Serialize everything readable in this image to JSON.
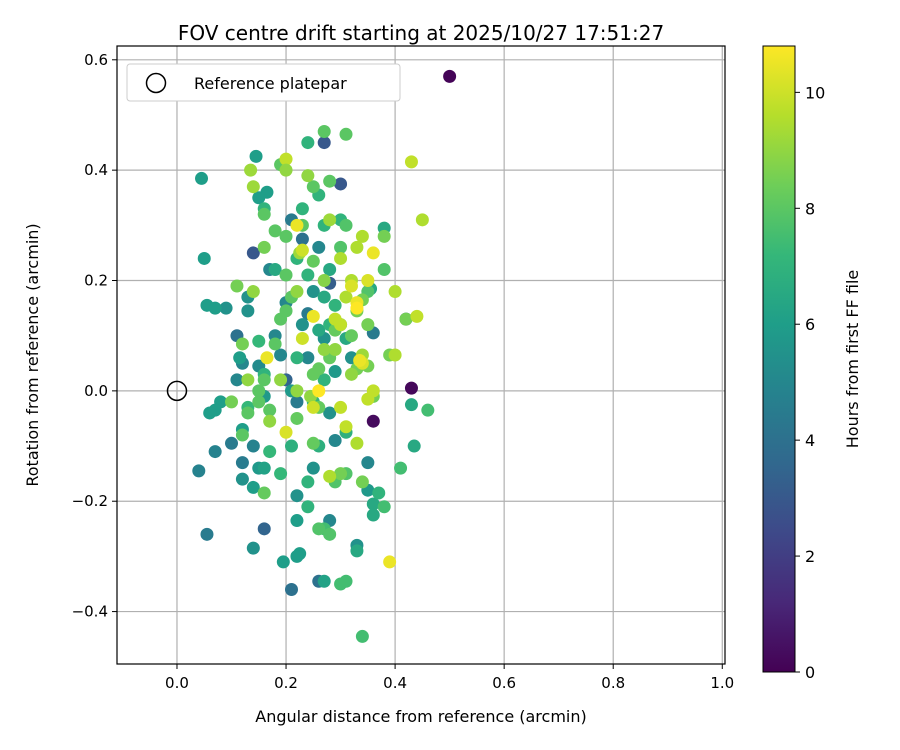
{
  "chart_data": {
    "type": "scatter",
    "title": "FOV centre drift starting at 2025/10/27 17:51:27",
    "xlabel": "Angular distance from reference (arcmin)",
    "ylabel": "Rotation from reference (arcmin)",
    "xlim": [
      -0.11,
      1.005
    ],
    "ylim": [
      -0.495,
      0.625
    ],
    "xticks": [
      0.0,
      0.2,
      0.4,
      0.6,
      0.8,
      1.0
    ],
    "xtick_labels": [
      "0.0",
      "0.2",
      "0.4",
      "0.6",
      "0.8",
      "1.0"
    ],
    "yticks": [
      -0.4,
      -0.2,
      0.0,
      0.2,
      0.4,
      0.6
    ],
    "ytick_labels": [
      "−0.4",
      "−0.2",
      "0.0",
      "0.2",
      "0.4",
      "0.6"
    ],
    "grid": true,
    "legend": {
      "position": "top-left",
      "entries": [
        "Reference platepar"
      ]
    },
    "reference_point": {
      "x": 0.0,
      "y": 0.0,
      "label": "Reference platepar",
      "marker": "open-circle"
    },
    "colorbar": {
      "label": "Hours from first FF file",
      "min": 0,
      "max": 10.8,
      "ticks": [
        0,
        2,
        4,
        6,
        8,
        10
      ],
      "tick_labels": [
        "0",
        "2",
        "4",
        "6",
        "8",
        "10"
      ],
      "colormap": "viridis",
      "stops": [
        "#440154",
        "#482878",
        "#3e4989",
        "#31688e",
        "#26828e",
        "#1f9e89",
        "#35b779",
        "#6ece58",
        "#b5de2b",
        "#fde725"
      ]
    },
    "points": [
      [
        0.5,
        0.57,
        0.1
      ],
      [
        0.43,
        0.005,
        0.2
      ],
      [
        0.36,
        -0.055,
        0.3
      ],
      [
        0.27,
        0.45,
        3.0
      ],
      [
        0.3,
        0.375,
        3.0
      ],
      [
        0.14,
        0.25,
        3.0
      ],
      [
        0.28,
        0.195,
        3.2
      ],
      [
        0.42,
        0.13,
        3.2
      ],
      [
        0.16,
        -0.25,
        3.5
      ],
      [
        0.26,
        -0.345,
        4.0
      ],
      [
        0.21,
        -0.36,
        4.0
      ],
      [
        0.055,
        -0.26,
        4.5
      ],
      [
        0.2,
        0.02,
        3.5
      ],
      [
        0.11,
        0.1,
        4.0
      ],
      [
        0.21,
        0.31,
        4.5
      ],
      [
        0.23,
        0.275,
        4.0
      ],
      [
        0.24,
        0.14,
        4.5
      ],
      [
        0.36,
        0.105,
        4.5
      ],
      [
        0.12,
        -0.13,
        4.5
      ],
      [
        0.1,
        -0.095,
        4.5
      ],
      [
        0.07,
        -0.11,
        4.8
      ],
      [
        0.04,
        -0.145,
        4.8
      ],
      [
        0.14,
        -0.1,
        4.8
      ],
      [
        0.35,
        -0.13,
        5.0
      ],
      [
        0.28,
        -0.235,
        5.0
      ],
      [
        0.29,
        -0.09,
        5.0
      ],
      [
        0.22,
        -0.02,
        4.5
      ],
      [
        0.19,
        0.065,
        5.0
      ],
      [
        0.24,
        0.06,
        5.0
      ],
      [
        0.17,
        0.22,
        5.0
      ],
      [
        0.2,
        0.16,
        5.0
      ],
      [
        0.11,
        0.02,
        5.0
      ],
      [
        0.12,
        0.05,
        5.0
      ],
      [
        0.15,
        0.045,
        5.2
      ],
      [
        0.18,
        0.1,
        5.0
      ],
      [
        0.26,
        0.26,
        5.0
      ],
      [
        0.13,
        0.145,
        5.5
      ],
      [
        0.13,
        0.17,
        5.5
      ],
      [
        0.09,
        0.15,
        5.5
      ],
      [
        0.25,
        0.18,
        5.5
      ],
      [
        0.23,
        0.12,
        5.5
      ],
      [
        0.27,
        0.095,
        5.5
      ],
      [
        0.3,
        0.12,
        5.5
      ],
      [
        0.32,
        0.06,
        5.5
      ],
      [
        0.28,
        -0.04,
        5.5
      ],
      [
        0.25,
        -0.14,
        5.5
      ],
      [
        0.33,
        -0.28,
        5.5
      ],
      [
        0.12,
        -0.16,
        5.5
      ],
      [
        0.14,
        -0.285,
        5.5
      ],
      [
        0.22,
        -0.19,
        5.5
      ],
      [
        0.35,
        -0.18,
        5.8
      ],
      [
        0.15,
        -0.14,
        5.8
      ],
      [
        0.29,
        0.035,
        5.8
      ],
      [
        0.21,
        0.0,
        5.8
      ],
      [
        0.16,
        -0.01,
        5.8
      ],
      [
        0.045,
        0.385,
        6.0
      ],
      [
        0.05,
        0.24,
        6.0
      ],
      [
        0.145,
        0.425,
        6.0
      ],
      [
        0.165,
        0.36,
        6.0
      ],
      [
        0.15,
        0.35,
        6.0
      ],
      [
        0.055,
        0.155,
        6.0
      ],
      [
        0.07,
        0.15,
        6.0
      ],
      [
        0.115,
        0.06,
        6.0
      ],
      [
        0.08,
        -0.02,
        6.0
      ],
      [
        0.07,
        -0.035,
        6.0
      ],
      [
        0.06,
        -0.04,
        6.0
      ],
      [
        0.14,
        -0.175,
        6.0
      ],
      [
        0.22,
        -0.235,
        6.0
      ],
      [
        0.195,
        -0.31,
        6.0
      ],
      [
        0.225,
        -0.295,
        6.0
      ],
      [
        0.22,
        -0.3,
        6.0
      ],
      [
        0.12,
        -0.07,
        6.0
      ],
      [
        0.16,
        -0.14,
        6.2
      ],
      [
        0.27,
        -0.345,
        6.2
      ],
      [
        0.36,
        -0.205,
        6.5
      ],
      [
        0.36,
        -0.225,
        6.5
      ],
      [
        0.33,
        -0.29,
        6.5
      ],
      [
        0.435,
        -0.1,
        6.5
      ],
      [
        0.43,
        -0.025,
        6.5
      ],
      [
        0.26,
        0.11,
        6.5
      ],
      [
        0.27,
        0.17,
        6.5
      ],
      [
        0.28,
        0.22,
        6.5
      ],
      [
        0.31,
        0.095,
        6.5
      ],
      [
        0.355,
        0.185,
        6.5
      ],
      [
        0.38,
        0.295,
        6.5
      ],
      [
        0.18,
        0.22,
        6.5
      ],
      [
        0.31,
        -0.075,
        6.8
      ],
      [
        0.21,
        -0.1,
        6.8
      ],
      [
        0.26,
        -0.1,
        6.8
      ],
      [
        0.24,
        -0.165,
        7.0
      ],
      [
        0.37,
        -0.185,
        7.0
      ],
      [
        0.24,
        -0.21,
        7.0
      ],
      [
        0.16,
        0.33,
        7.0
      ],
      [
        0.24,
        0.45,
        7.0
      ],
      [
        0.26,
        0.355,
        7.0
      ],
      [
        0.23,
        0.33,
        7.0
      ],
      [
        0.3,
        0.31,
        7.0
      ],
      [
        0.27,
        0.3,
        7.0
      ],
      [
        0.22,
        0.24,
        7.0
      ],
      [
        0.24,
        0.21,
        7.0
      ],
      [
        0.28,
        0.12,
        7.0
      ],
      [
        0.29,
        0.155,
        7.0
      ],
      [
        0.27,
        0.02,
        7.0
      ],
      [
        0.25,
        -0.02,
        7.0
      ],
      [
        0.22,
        0.06,
        7.0
      ],
      [
        0.16,
        0.03,
        7.0
      ],
      [
        0.17,
        -0.11,
        7.2
      ],
      [
        0.13,
        -0.03,
        7.2
      ],
      [
        0.15,
        0.09,
        7.2
      ],
      [
        0.19,
        -0.15,
        7.2
      ],
      [
        0.27,
        -0.25,
        7.5
      ],
      [
        0.34,
        -0.445,
        7.5
      ],
      [
        0.3,
        -0.35,
        7.5
      ],
      [
        0.31,
        -0.345,
        7.5
      ],
      [
        0.46,
        -0.035,
        7.5
      ],
      [
        0.41,
        -0.14,
        7.5
      ],
      [
        0.38,
        -0.21,
        7.5
      ],
      [
        0.28,
        -0.26,
        7.8
      ],
      [
        0.26,
        -0.25,
        7.8
      ],
      [
        0.29,
        -0.165,
        7.8
      ],
      [
        0.31,
        -0.15,
        7.8
      ],
      [
        0.35,
        0.18,
        7.8
      ],
      [
        0.38,
        0.22,
        7.8
      ],
      [
        0.3,
        0.26,
        7.8
      ],
      [
        0.31,
        0.3,
        7.8
      ],
      [
        0.28,
        0.38,
        8.0
      ],
      [
        0.25,
        0.37,
        8.0
      ],
      [
        0.27,
        0.47,
        8.0
      ],
      [
        0.31,
        0.465,
        8.0
      ],
      [
        0.2,
        0.28,
        8.0
      ],
      [
        0.23,
        0.3,
        8.0
      ],
      [
        0.19,
        0.41,
        8.0
      ],
      [
        0.18,
        0.29,
        8.0
      ],
      [
        0.16,
        0.32,
        8.0
      ],
      [
        0.2,
        0.21,
        8.0
      ],
      [
        0.21,
        0.17,
        8.0
      ],
      [
        0.19,
        0.13,
        8.0
      ],
      [
        0.2,
        0.145,
        8.0
      ],
      [
        0.18,
        0.085,
        8.0
      ],
      [
        0.16,
        0.02,
        8.0
      ],
      [
        0.15,
        0.0,
        8.0
      ],
      [
        0.15,
        -0.02,
        8.0
      ],
      [
        0.17,
        -0.035,
        8.0
      ],
      [
        0.13,
        -0.04,
        8.0
      ],
      [
        0.12,
        -0.08,
        8.0
      ],
      [
        0.1,
        -0.02,
        8.5
      ],
      [
        0.12,
        0.085,
        8.5
      ],
      [
        0.11,
        0.19,
        8.5
      ],
      [
        0.16,
        0.26,
        8.5
      ],
      [
        0.16,
        -0.185,
        8.2
      ],
      [
        0.25,
        -0.095,
        8.2
      ],
      [
        0.22,
        -0.05,
        8.2
      ],
      [
        0.26,
        -0.03,
        8.2
      ],
      [
        0.25,
        0.03,
        8.2
      ],
      [
        0.25,
        0.235,
        8.2
      ],
      [
        0.26,
        0.04,
        8.2
      ],
      [
        0.28,
        0.06,
        8.2
      ],
      [
        0.29,
        0.11,
        8.2
      ],
      [
        0.32,
        0.1,
        8.2
      ],
      [
        0.33,
        0.04,
        8.5
      ],
      [
        0.35,
        0.045,
        8.5
      ],
      [
        0.33,
        0.145,
        8.5
      ],
      [
        0.34,
        0.165,
        8.5
      ],
      [
        0.35,
        0.12,
        8.5
      ],
      [
        0.38,
        0.28,
        8.5
      ],
      [
        0.36,
        -0.01,
        8.5
      ],
      [
        0.39,
        0.065,
        8.5
      ],
      [
        0.42,
        0.13,
        8.5
      ],
      [
        0.3,
        -0.15,
        8.5
      ],
      [
        0.34,
        -0.165,
        8.5
      ],
      [
        0.32,
        0.03,
        9.0
      ],
      [
        0.29,
        0.075,
        9.0
      ],
      [
        0.27,
        0.075,
        9.0
      ],
      [
        0.245,
        -0.01,
        9.0
      ],
      [
        0.22,
        0.0,
        9.0
      ],
      [
        0.19,
        0.02,
        9.0
      ],
      [
        0.17,
        -0.055,
        9.0
      ],
      [
        0.14,
        0.18,
        9.0
      ],
      [
        0.13,
        0.02,
        9.0
      ],
      [
        0.14,
        0.37,
        9.2
      ],
      [
        0.135,
        0.4,
        9.2
      ],
      [
        0.225,
        0.25,
        9.2
      ],
      [
        0.28,
        0.31,
        9.2
      ],
      [
        0.34,
        0.065,
        9.2
      ],
      [
        0.33,
        -0.095,
        9.5
      ],
      [
        0.28,
        -0.155,
        9.5
      ],
      [
        0.4,
        0.18,
        9.5
      ],
      [
        0.4,
        0.065,
        9.5
      ],
      [
        0.45,
        0.31,
        9.5
      ],
      [
        0.33,
        0.26,
        9.5
      ],
      [
        0.34,
        0.28,
        9.5
      ],
      [
        0.3,
        0.24,
        9.5
      ],
      [
        0.31,
        0.17,
        9.5
      ],
      [
        0.32,
        0.2,
        9.5
      ],
      [
        0.29,
        0.13,
        9.8
      ],
      [
        0.3,
        0.12,
        9.8
      ],
      [
        0.2,
        0.42,
        9.8
      ],
      [
        0.43,
        0.415,
        9.8
      ],
      [
        0.44,
        0.135,
        9.8
      ],
      [
        0.36,
        0.0,
        9.8
      ],
      [
        0.35,
        -0.015,
        9.8
      ],
      [
        0.3,
        -0.03,
        9.8
      ],
      [
        0.31,
        -0.065,
        9.8
      ],
      [
        0.23,
        0.095,
        10.0
      ],
      [
        0.25,
        -0.03,
        10.0
      ],
      [
        0.2,
        -0.075,
        10.2
      ],
      [
        0.23,
        0.255,
        10.0
      ],
      [
        0.34,
        0.05,
        10.2
      ],
      [
        0.32,
        0.19,
        10.2
      ],
      [
        0.35,
        0.2,
        10.2
      ],
      [
        0.39,
        -0.31,
        10.5
      ],
      [
        0.36,
        0.25,
        10.5
      ],
      [
        0.33,
        0.16,
        10.5
      ],
      [
        0.25,
        0.135,
        10.5
      ],
      [
        0.22,
        0.3,
        10.5
      ],
      [
        0.335,
        0.055,
        10.5
      ],
      [
        0.165,
        0.06,
        10.5
      ],
      [
        0.26,
        0.0,
        10.8
      ],
      [
        0.33,
        0.15,
        10.8
      ],
      [
        0.2,
        0.4,
        9.0
      ],
      [
        0.24,
        0.39,
        9.0
      ],
      [
        0.22,
        0.18,
        9.0
      ],
      [
        0.27,
        0.2,
        8.8
      ]
    ]
  }
}
